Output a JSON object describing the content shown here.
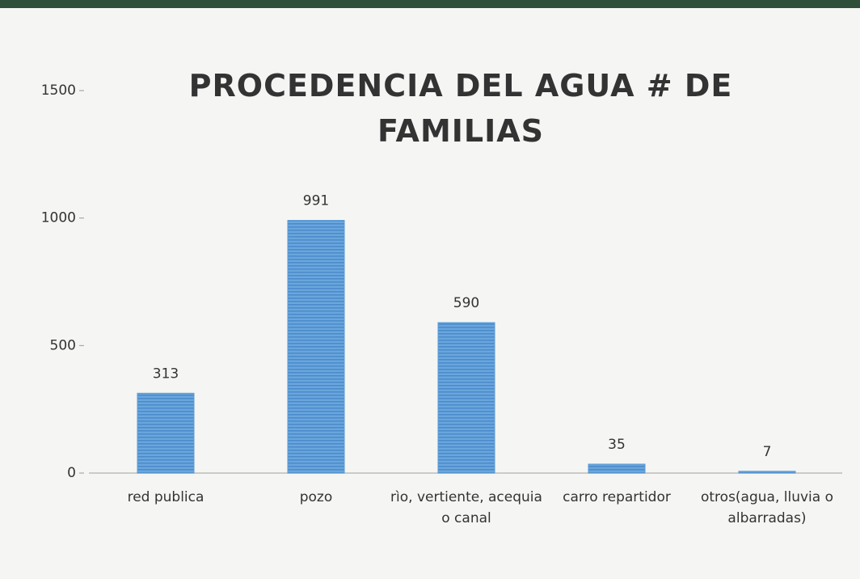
{
  "chart_data": {
    "type": "bar",
    "title": "PROCEDENCIA DEL AGUA # DE FAMILIAS",
    "categories": [
      "red publica",
      "pozo",
      "rìo, vertiente, acequia o canal",
      "carro repartidor",
      "otros(agua, lluvia o albarradas)"
    ],
    "values": [
      313,
      991,
      590,
      35,
      7
    ],
    "color": "#5b9bd5",
    "ylim": [
      0,
      1500
    ],
    "yticks": [
      0,
      500,
      1000,
      1500
    ],
    "grid": false
  }
}
